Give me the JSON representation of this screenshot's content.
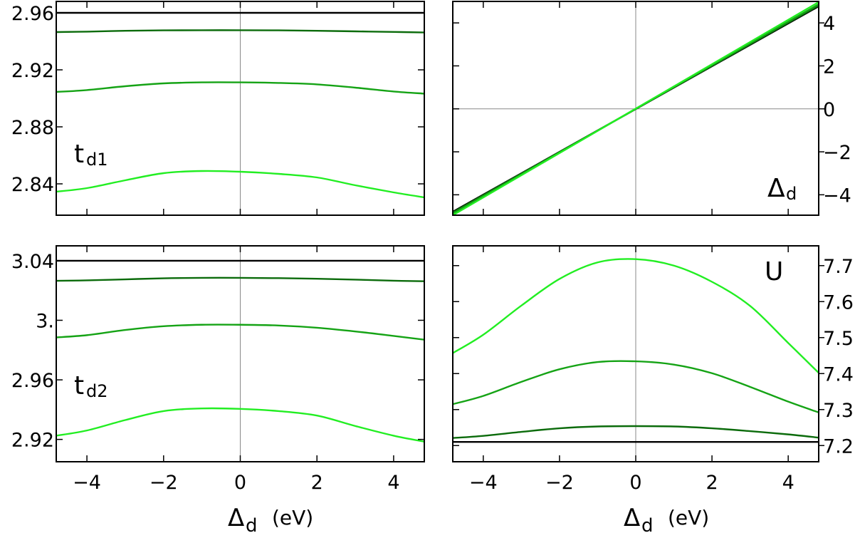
{
  "xlabel": {
    "main": "Δ",
    "sub": "d",
    "unit": "(eV)"
  },
  "chart_data": [
    {
      "type": "line",
      "label_main": "t",
      "label_sub": "d1",
      "xlim": [
        -4.8,
        4.8
      ],
      "ylim": [
        2.818,
        2.968
      ],
      "x_ticks": [
        -4,
        -2,
        0,
        2,
        4
      ],
      "y_ticks": [
        2.84,
        2.88,
        2.92,
        2.96
      ],
      "y_tick_labels": [
        "2.84",
        "2.88",
        "2.92",
        "2.96"
      ],
      "y_axis_side": "left",
      "show_x_tick_labels": false,
      "x": [
        -4.8,
        -4,
        -3,
        -2,
        -1,
        0,
        1,
        2,
        3,
        4,
        4.8
      ],
      "series": [
        {
          "color": "#000000",
          "values": [
            2.96,
            2.96,
            2.96,
            2.96,
            2.96,
            2.96,
            2.96,
            2.96,
            2.96,
            2.96,
            2.96
          ]
        },
        {
          "color": "#0b6b0b",
          "values": [
            2.9465,
            2.9468,
            2.9474,
            2.9477,
            2.9478,
            2.9478,
            2.9477,
            2.9474,
            2.947,
            2.9466,
            2.9462
          ]
        },
        {
          "color": "#15a315",
          "values": [
            2.9045,
            2.9058,
            2.9085,
            2.9105,
            2.9112,
            2.9112,
            2.9108,
            2.9098,
            2.9075,
            2.9048,
            2.9033
          ]
        },
        {
          "color": "#22ee22",
          "values": [
            2.8345,
            2.837,
            2.8425,
            2.8475,
            2.849,
            2.8485,
            2.847,
            2.8445,
            2.839,
            2.834,
            2.8305
          ]
        }
      ]
    },
    {
      "type": "line",
      "label_main": "Δ",
      "label_sub": "d",
      "xlim": [
        -4.8,
        4.8
      ],
      "ylim": [
        -4.95,
        5.0
      ],
      "x_ticks": [
        -4,
        -2,
        0,
        2,
        4
      ],
      "y_ticks": [
        -4,
        -2,
        0,
        2,
        4
      ],
      "y_tick_labels": [
        "−4",
        "−2",
        "0",
        "2",
        "4"
      ],
      "y_axis_side": "right",
      "show_x_tick_labels": false,
      "x": [
        -4.8,
        4.8
      ],
      "series": [
        {
          "color": "#000000",
          "values": [
            -4.79,
            4.77
          ]
        },
        {
          "color": "#0b6b0b",
          "values": [
            -4.82,
            4.81
          ]
        },
        {
          "color": "#15a315",
          "values": [
            -4.87,
            4.87
          ]
        },
        {
          "color": "#22ee22",
          "values": [
            -4.95,
            4.97
          ]
        }
      ]
    },
    {
      "type": "line",
      "label_main": "t",
      "label_sub": "d2",
      "xlim": [
        -4.8,
        4.8
      ],
      "ylim": [
        2.905,
        3.05
      ],
      "x_ticks": [
        -4,
        -2,
        0,
        2,
        4
      ],
      "y_ticks": [
        2.92,
        2.96,
        3.0,
        3.04
      ],
      "y_tick_labels": [
        "2.92",
        "2.96",
        "3.",
        "3.04"
      ],
      "y_axis_side": "left",
      "show_x_tick_labels": true,
      "x_tick_labels": [
        "−4",
        "−2",
        "0",
        "2",
        "4"
      ],
      "x": [
        -4.8,
        -4,
        -3,
        -2,
        -1,
        0,
        1,
        2,
        3,
        4,
        4.8
      ],
      "series": [
        {
          "color": "#000000",
          "values": [
            3.04,
            3.04,
            3.04,
            3.04,
            3.04,
            3.04,
            3.04,
            3.04,
            3.04,
            3.04,
            3.04
          ]
        },
        {
          "color": "#0b6b0b",
          "values": [
            3.0265,
            3.0268,
            3.0275,
            3.0282,
            3.0285,
            3.0285,
            3.0283,
            3.0279,
            3.0273,
            3.0266,
            3.0262
          ]
        },
        {
          "color": "#15a315",
          "values": [
            2.9885,
            2.99,
            2.9935,
            2.996,
            2.997,
            2.997,
            2.9965,
            2.995,
            2.9925,
            2.9895,
            2.987
          ]
        },
        {
          "color": "#22ee22",
          "values": [
            2.9225,
            2.926,
            2.933,
            2.939,
            2.9408,
            2.9405,
            2.939,
            2.936,
            2.929,
            2.9225,
            2.9185
          ]
        }
      ]
    },
    {
      "type": "line",
      "label_main": "U",
      "label_sub": "",
      "xlim": [
        -4.8,
        4.8
      ],
      "ylim": [
        7.155,
        7.755
      ],
      "x_ticks": [
        -4,
        -2,
        0,
        2,
        4
      ],
      "y_ticks": [
        7.2,
        7.3,
        7.4,
        7.5,
        7.6,
        7.7
      ],
      "y_tick_labels": [
        "7.2",
        "7.3",
        "7.4",
        "7.5",
        "7.6",
        "7.7"
      ],
      "y_axis_side": "right",
      "show_x_tick_labels": true,
      "x_tick_labels": [
        "−4",
        "−2",
        "0",
        "2",
        "4"
      ],
      "x": [
        -4.8,
        -4,
        -3,
        -2,
        -1,
        0,
        1,
        2,
        3,
        4,
        4.8
      ],
      "series": [
        {
          "color": "#000000",
          "values": [
            7.21,
            7.21,
            7.21,
            7.21,
            7.21,
            7.21,
            7.21,
            7.21,
            7.21,
            7.21,
            7.21
          ]
        },
        {
          "color": "#0b6b0b",
          "values": [
            7.221,
            7.227,
            7.238,
            7.248,
            7.253,
            7.254,
            7.253,
            7.248,
            7.24,
            7.231,
            7.222
          ]
        },
        {
          "color": "#15a315",
          "values": [
            7.315,
            7.338,
            7.377,
            7.412,
            7.432,
            7.434,
            7.425,
            7.401,
            7.363,
            7.322,
            7.292
          ]
        },
        {
          "color": "#22ee22",
          "values": [
            7.457,
            7.508,
            7.589,
            7.663,
            7.709,
            7.718,
            7.7,
            7.655,
            7.588,
            7.485,
            7.402
          ]
        }
      ]
    }
  ]
}
